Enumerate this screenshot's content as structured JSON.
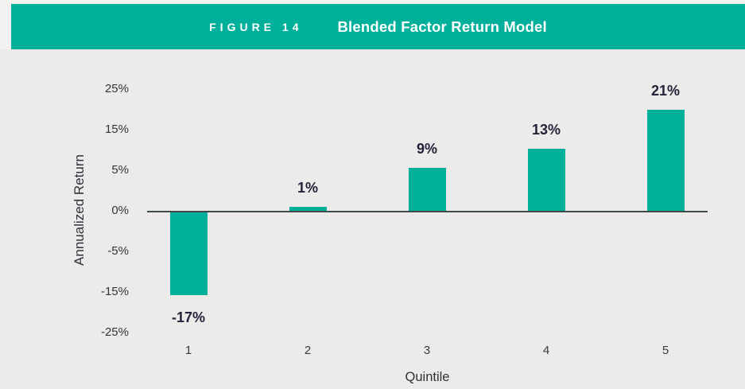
{
  "figure": {
    "label": "FIGURE 14",
    "title": "Blended Factor Return Model"
  },
  "chart_data": {
    "type": "bar",
    "title": "Blended Factor Return Model",
    "categories": [
      "1",
      "2",
      "3",
      "4",
      "5"
    ],
    "values": [
      -17,
      1,
      9,
      13,
      21
    ],
    "value_labels": [
      "-17%",
      "1%",
      "9%",
      "13%",
      "21%"
    ],
    "xlabel": "Quintile",
    "ylabel": "Annualized Return",
    "y_tick_labels": [
      "25%",
      "15%",
      "5%",
      "0%",
      "-5%",
      "-15%",
      "-25%"
    ],
    "ylim": [
      -25,
      25
    ],
    "grid": false,
    "legend": false
  },
  "colors": {
    "accent_teal": "#00B09B",
    "banner_text": "#FFFFFF",
    "chart_background": "#ECEBE9",
    "page_background": "#F2F1EF",
    "axis_line": "#3E4B48",
    "data_label": "#23233B"
  }
}
